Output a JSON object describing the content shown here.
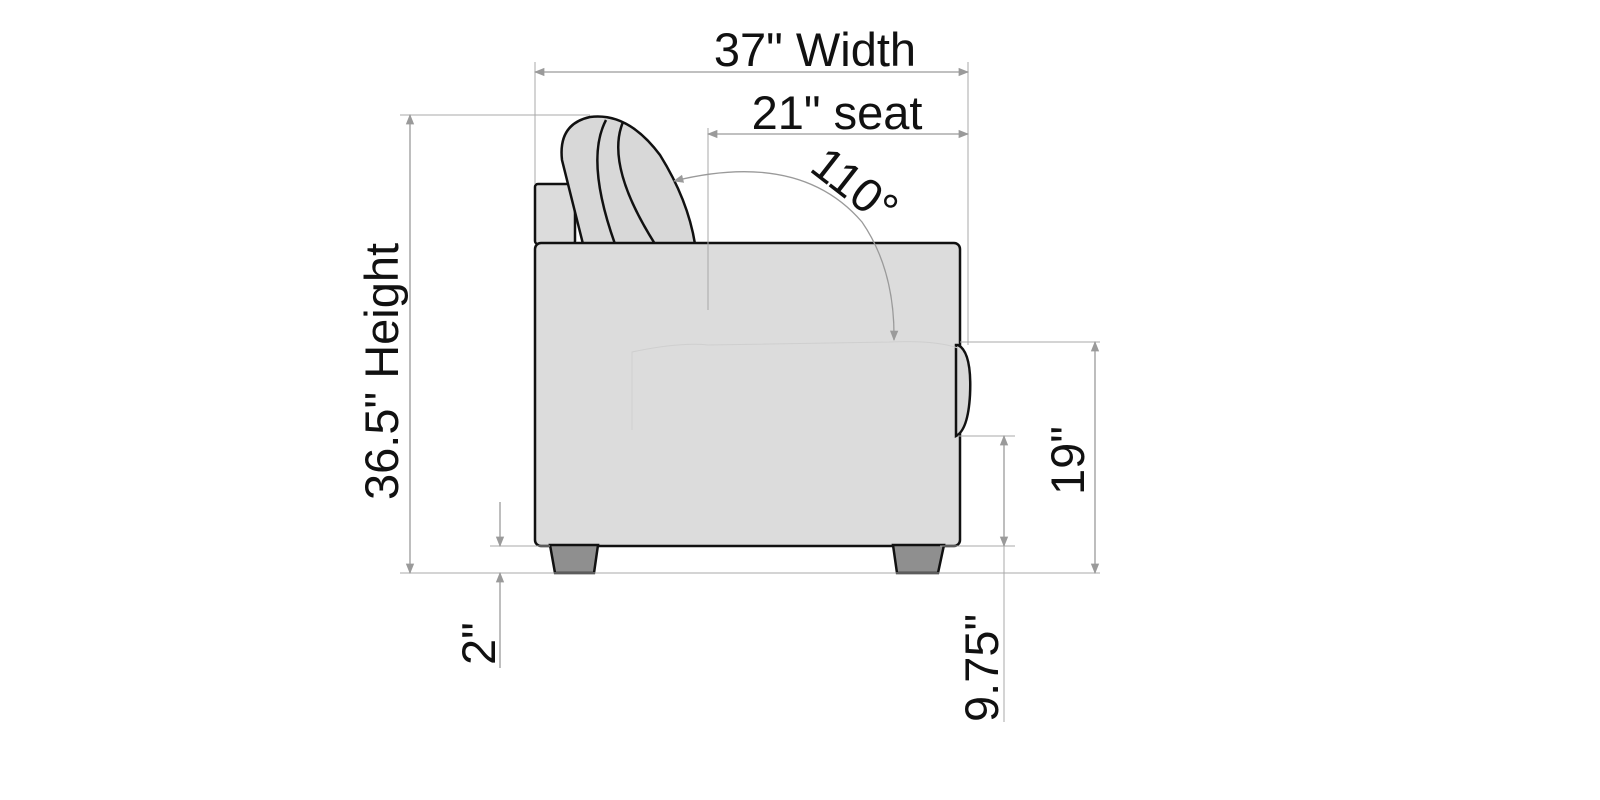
{
  "dimensions": {
    "width_label": "37\" Width",
    "seat_label": "21\" seat",
    "height_label": "36.5\" Height",
    "angle_label": "110°",
    "seat_height_label": "19\"",
    "leg_height_label": "2\"",
    "arm_clearance_label": "9.75\""
  },
  "colors": {
    "upholstery": "#dcdcdc",
    "legs": "#8f8f8f",
    "outline": "#111111",
    "dimension_lines": "#9a9a9a"
  }
}
